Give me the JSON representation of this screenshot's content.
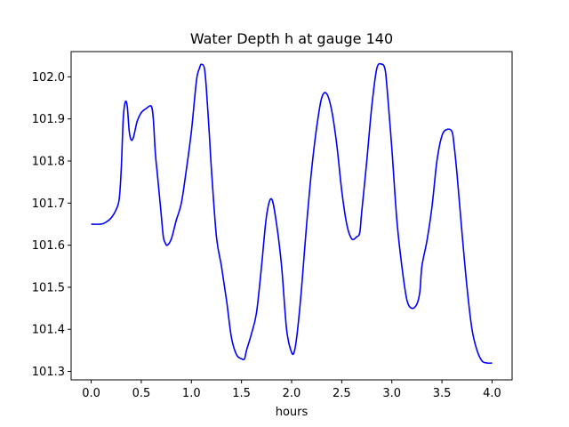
{
  "chart_data": {
    "type": "line",
    "title": "Water Depth h at gauge 140",
    "xlabel": "hours",
    "ylabel": "",
    "xlim": [
      -0.2,
      4.2
    ],
    "ylim": [
      101.28,
      102.06
    ],
    "x_ticks": [
      0.0,
      0.5,
      1.0,
      1.5,
      2.0,
      2.5,
      3.0,
      3.5,
      4.0
    ],
    "x_tick_labels": [
      "0.0",
      "0.5",
      "1.0",
      "1.5",
      "2.0",
      "2.5",
      "3.0",
      "3.5",
      "4.0"
    ],
    "y_ticks": [
      101.3,
      101.4,
      101.5,
      101.6,
      101.7,
      101.8,
      101.9,
      102.0
    ],
    "y_tick_labels": [
      "101.3",
      "101.4",
      "101.5",
      "101.6",
      "101.7",
      "101.8",
      "101.9",
      "102.0"
    ],
    "grid": false,
    "series": [
      {
        "color": "#0000ff",
        "x": [
          0.0,
          0.1,
          0.15,
          0.2,
          0.25,
          0.28,
          0.3,
          0.32,
          0.34,
          0.36,
          0.38,
          0.4,
          0.42,
          0.44,
          0.46,
          0.5,
          0.55,
          0.6,
          0.62,
          0.64,
          0.66,
          0.68,
          0.7,
          0.72,
          0.74,
          0.76,
          0.8,
          0.85,
          0.9,
          0.95,
          1.0,
          1.05,
          1.08,
          1.1,
          1.13,
          1.15,
          1.18,
          1.2,
          1.25,
          1.3,
          1.35,
          1.4,
          1.45,
          1.5,
          1.53,
          1.55,
          1.6,
          1.65,
          1.7,
          1.75,
          1.8,
          1.85,
          1.9,
          1.95,
          2.0,
          2.03,
          2.06,
          2.1,
          2.15,
          2.2,
          2.25,
          2.3,
          2.35,
          2.4,
          2.45,
          2.5,
          2.55,
          2.6,
          2.65,
          2.68,
          2.7,
          2.75,
          2.8,
          2.85,
          2.9,
          2.93,
          2.95,
          3.0,
          3.05,
          3.1,
          3.15,
          3.2,
          3.25,
          3.28,
          3.3,
          3.35,
          3.4,
          3.45,
          3.5,
          3.55,
          3.6,
          3.62,
          3.65,
          3.7,
          3.75,
          3.8,
          3.85,
          3.9,
          3.95,
          4.0
        ],
        "y": [
          101.65,
          101.65,
          101.655,
          101.665,
          101.685,
          101.71,
          101.78,
          101.9,
          101.94,
          101.93,
          101.87,
          101.85,
          101.855,
          101.875,
          101.895,
          101.915,
          101.925,
          101.93,
          101.9,
          101.82,
          101.77,
          101.72,
          101.67,
          101.62,
          101.605,
          101.6,
          101.615,
          101.66,
          101.7,
          101.78,
          101.87,
          101.99,
          102.02,
          102.03,
          102.02,
          101.97,
          101.86,
          101.78,
          101.62,
          101.55,
          101.47,
          101.38,
          101.34,
          101.33,
          101.33,
          101.35,
          101.39,
          101.44,
          101.55,
          101.67,
          101.71,
          101.65,
          101.55,
          101.4,
          101.345,
          101.35,
          101.4,
          101.5,
          101.65,
          101.78,
          101.88,
          101.95,
          101.96,
          101.92,
          101.84,
          101.73,
          101.65,
          101.615,
          101.62,
          101.63,
          101.68,
          101.8,
          101.93,
          102.02,
          102.03,
          102.02,
          101.98,
          101.83,
          101.66,
          101.55,
          101.47,
          101.45,
          101.46,
          101.49,
          101.55,
          101.61,
          101.69,
          101.8,
          101.86,
          101.875,
          101.87,
          101.84,
          101.77,
          101.63,
          101.5,
          101.4,
          101.35,
          101.325,
          101.32,
          101.32
        ]
      }
    ]
  }
}
